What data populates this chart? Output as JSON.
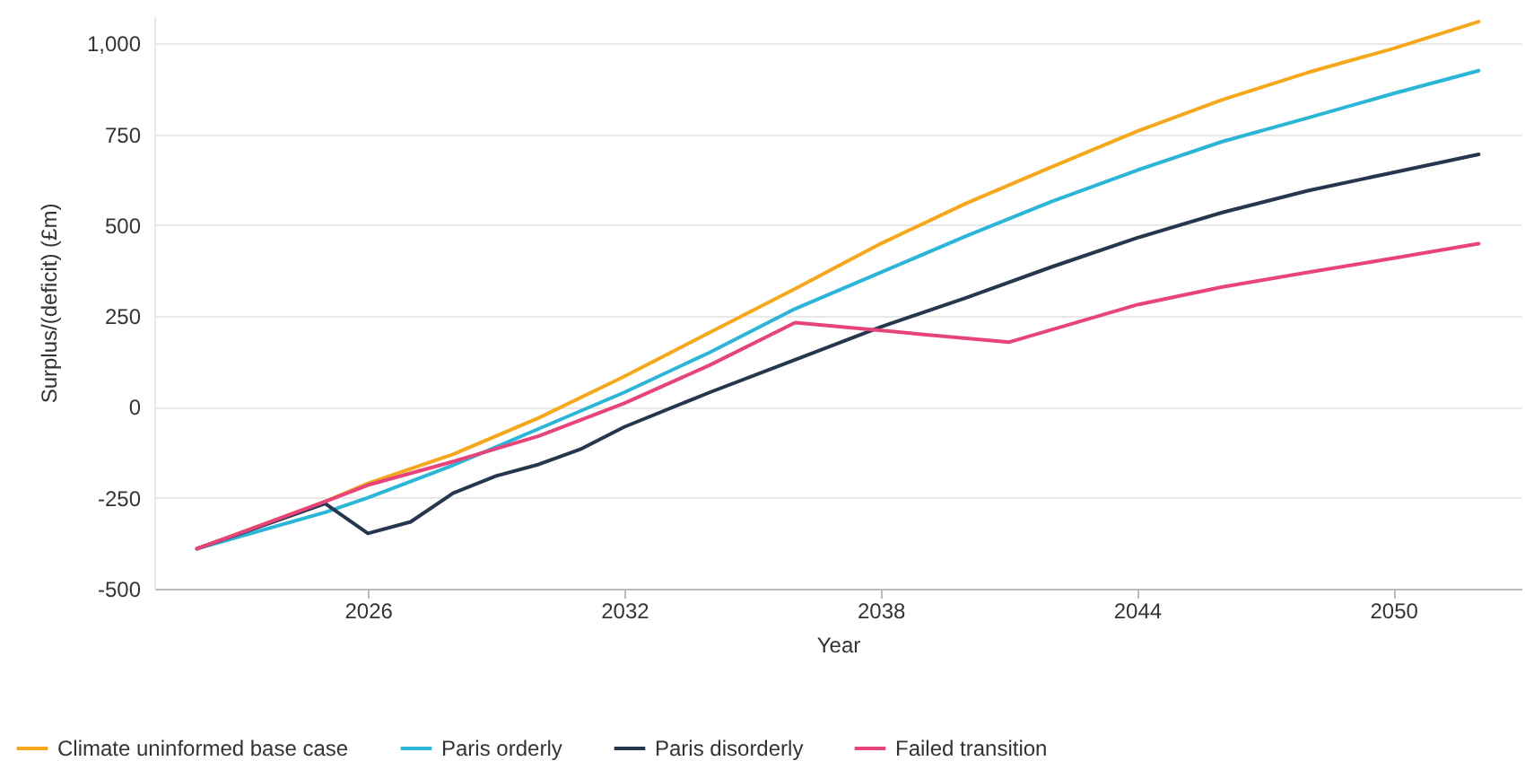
{
  "chart_data": {
    "type": "line",
    "xlabel": "Year",
    "ylabel": "Surplus/(deficit) (£m)",
    "xlim": [
      2021,
      2053
    ],
    "xticks": [
      2026,
      2032,
      2038,
      2044,
      2050
    ],
    "ylim": [
      -500,
      1075
    ],
    "yticks": [
      {
        "value": -500,
        "label": "-500"
      },
      {
        "value": -250,
        "label": "-250"
      },
      0,
      250,
      500,
      750,
      {
        "value": 1000,
        "label": "1,000"
      }
    ],
    "grid": "y",
    "legend": "bottom",
    "marker": "none",
    "line_style": "solid",
    "series": [
      {
        "name": "Climate uninformed base case",
        "color": "#f5a81c",
        "x": [
          2022,
          2025,
          2026,
          2028,
          2030,
          2032,
          2034,
          2036,
          2038,
          2040,
          2042,
          2044,
          2046,
          2048,
          2050,
          2052
        ],
        "values": [
          -390,
          -260,
          -210,
          -130,
          -30,
          84,
          205,
          325,
          449,
          560,
          660,
          758,
          845,
          920,
          986,
          1060
        ]
      },
      {
        "name": "Paris orderly",
        "color": "#2bb5d6",
        "x": [
          2022,
          2025,
          2026,
          2028,
          2030,
          2032,
          2034,
          2036,
          2038,
          2040,
          2042,
          2044,
          2046,
          2048,
          2050,
          2052
        ],
        "values": [
          -390,
          -290,
          -250,
          -160,
          -60,
          40,
          150,
          270,
          370,
          470,
          565,
          651,
          730,
          795,
          862,
          925
        ]
      },
      {
        "name": "Paris disorderly",
        "color": "#26374d",
        "x": [
          2022,
          2025,
          2026,
          2027,
          2028,
          2029,
          2030,
          2031,
          2032,
          2034,
          2036,
          2038,
          2040,
          2042,
          2044,
          2046,
          2048,
          2050,
          2052
        ],
        "values": [
          -390,
          -266,
          -348,
          -316,
          -237,
          -190,
          -158,
          -115,
          -55,
          40,
          130,
          220,
          300,
          385,
          465,
          535,
          595,
          645,
          695
        ]
      },
      {
        "name": "Failed transition",
        "color": "#e6447b",
        "x": [
          2022,
          2025,
          2026,
          2028,
          2030,
          2032,
          2034,
          2036,
          2041,
          2044,
          2046,
          2048,
          2050,
          2052
        ],
        "values": [
          -390,
          -260,
          -215,
          -150,
          -80,
          10,
          115,
          232,
          178,
          281,
          330,
          370,
          409,
          449
        ]
      }
    ]
  }
}
